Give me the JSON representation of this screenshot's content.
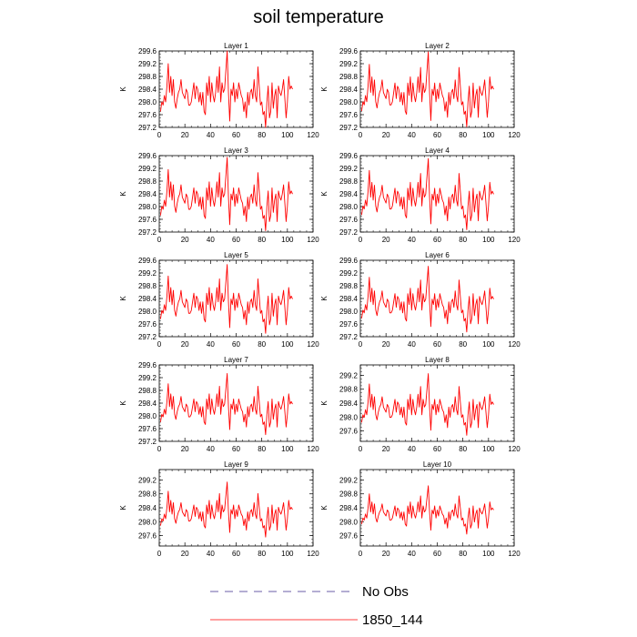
{
  "figure": {
    "title": "soil temperature"
  },
  "chart_data": {
    "type": "line",
    "title": "soil temperature",
    "ylabel": "K",
    "xlim": [
      0,
      120
    ],
    "x_ticks": [
      0,
      20,
      40,
      60,
      80,
      100,
      120
    ],
    "line_color": "#ff0000",
    "legend": {
      "placement": "bottom-center",
      "entries": [
        {
          "label": "No Obs",
          "style": "dashed",
          "color": "#3a2a8a"
        },
        {
          "label": "1850_144",
          "style": "solid",
          "color": "#ff0000"
        }
      ]
    },
    "base_series": [
      297.7,
      298.0,
      297.9,
      298.2,
      298.0,
      298.5,
      299.2,
      298.3,
      298.8,
      298.2,
      298.7,
      298.0,
      297.8,
      298.1,
      298.3,
      298.4,
      298.7,
      298.3,
      298.2,
      298.1,
      298.4,
      298.3,
      297.9,
      297.9,
      298.0,
      298.3,
      298.6,
      298.1,
      298.5,
      298.4,
      298.0,
      298.3,
      297.9,
      298.3,
      297.7,
      297.6,
      298.6,
      298.2,
      298.8,
      298.0,
      298.6,
      298.2,
      298.0,
      298.3,
      298.8,
      298.3,
      299.1,
      298.0,
      298.6,
      298.3,
      298.4,
      299.0,
      299.6,
      298.3,
      297.4,
      298.4,
      298.2,
      298.6,
      298.0,
      298.4,
      298.1,
      298.6,
      298.4,
      298.2,
      298.1,
      297.7,
      298.0,
      297.5,
      298.3,
      297.9,
      298.3,
      298.4,
      298.1,
      298.7,
      298.2,
      298.0,
      299.1,
      298.5,
      297.9,
      298.0,
      297.6,
      297.7,
      297.2,
      298.0,
      298.5,
      297.5,
      297.7,
      298.6,
      297.8,
      298.2,
      298.4,
      297.5,
      298.5,
      298.3,
      298.2,
      298.4,
      298.7,
      298.1,
      297.5,
      298.0,
      298.8,
      298.4,
      298.5,
      298.4
    ],
    "panels": [
      {
        "title": "Layer 1",
        "ylim": [
          297.2,
          299.6
        ],
        "y_ticks": [
          "297.2",
          "297.6",
          "298.0",
          "298.4",
          "298.8",
          "299.2",
          "299.6"
        ],
        "amp": 1.0
      },
      {
        "title": "Layer 2",
        "ylim": [
          297.2,
          299.6
        ],
        "y_ticks": [
          "297.2",
          "297.6",
          "298.0",
          "298.4",
          "298.8",
          "299.2",
          "299.6"
        ],
        "amp": 0.98
      },
      {
        "title": "Layer 3",
        "ylim": [
          297.2,
          299.6
        ],
        "y_ticks": [
          "297.2",
          "297.6",
          "298.0",
          "298.4",
          "298.8",
          "299.2",
          "299.6"
        ],
        "amp": 0.96
      },
      {
        "title": "Layer 4",
        "ylim": [
          297.2,
          299.6
        ],
        "y_ticks": [
          "297.2",
          "297.6",
          "298.0",
          "298.4",
          "298.8",
          "299.2",
          "299.6"
        ],
        "amp": 0.93
      },
      {
        "title": "Layer 5",
        "ylim": [
          297.2,
          299.6
        ],
        "y_ticks": [
          "297.2",
          "297.6",
          "298.0",
          "298.4",
          "298.8",
          "299.2",
          "299.6"
        ],
        "amp": 0.9
      },
      {
        "title": "Layer 6",
        "ylim": [
          297.2,
          299.6
        ],
        "y_ticks": [
          "297.2",
          "297.6",
          "298.0",
          "298.4",
          "298.8",
          "299.2",
          "299.6"
        ],
        "amp": 0.86
      },
      {
        "title": "Layer 7",
        "ylim": [
          297.2,
          299.6
        ],
        "y_ticks": [
          "297.2",
          "297.6",
          "298.0",
          "298.4",
          "298.8",
          "299.2",
          "299.6"
        ],
        "amp": 0.8
      },
      {
        "title": "Layer 8",
        "ylim": [
          297.3,
          299.5
        ],
        "y_ticks": [
          "297.6",
          "298.0",
          "298.4",
          "298.8",
          "299.2"
        ],
        "amp": 0.74
      },
      {
        "title": "Layer 9",
        "ylim": [
          297.3,
          299.5
        ],
        "y_ticks": [
          "297.6",
          "298.0",
          "298.4",
          "298.8",
          "299.2"
        ],
        "amp": 0.66
      },
      {
        "title": "Layer 10",
        "ylim": [
          297.3,
          299.5
        ],
        "y_ticks": [
          "297.6",
          "298.0",
          "298.4",
          "298.8",
          "299.2"
        ],
        "amp": 0.58
      }
    ]
  }
}
